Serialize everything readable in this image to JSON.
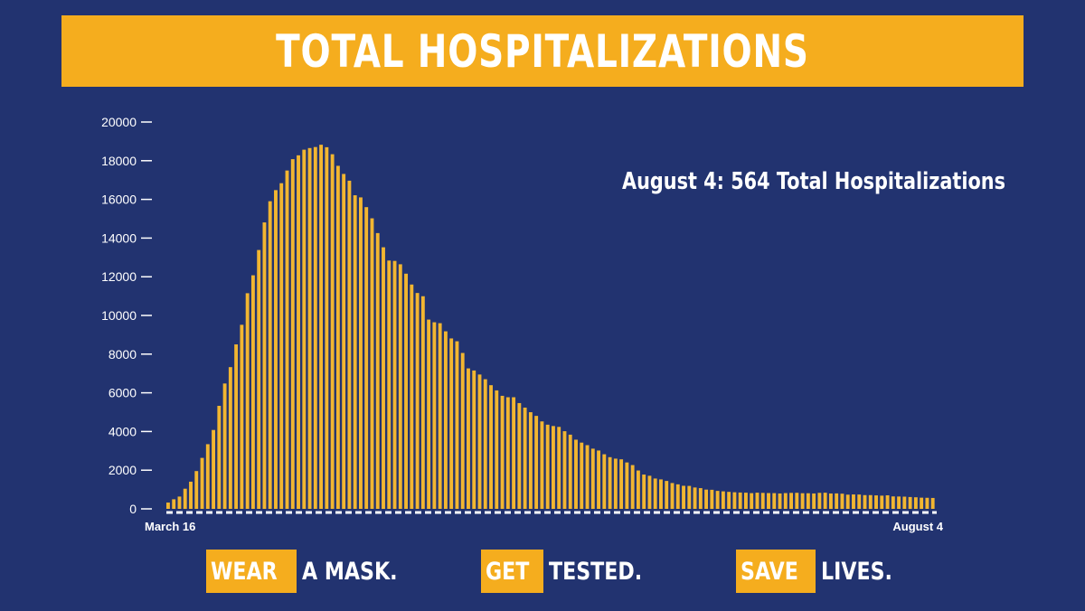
{
  "title": "TOTAL HOSPITALIZATIONS",
  "annotation": "August 4: 564 Total Hospitalizations",
  "slogans": [
    {
      "highlight": "WEAR",
      "rest": "A MASK."
    },
    {
      "highlight": "GET",
      "rest": "TESTED."
    },
    {
      "highlight": "SAVE",
      "rest": "LIVES."
    }
  ],
  "colors": {
    "background": "#223370",
    "accent": "#f5ad1e",
    "bar": "#f2b631",
    "text": "#ffffff"
  },
  "chart_data": {
    "type": "bar",
    "title": "TOTAL HOSPITALIZATIONS",
    "x_start_label": "March 16",
    "x_end_label": "August 4",
    "ylim": [
      0,
      20000
    ],
    "yticks": [
      0,
      2000,
      4000,
      6000,
      8000,
      10000,
      12000,
      14000,
      16000,
      18000,
      20000
    ],
    "grid": false,
    "values": [
      326,
      496,
      636,
      1042,
      1406,
      1954,
      2635,
      3344,
      4079,
      5327,
      6481,
      7328,
      8503,
      9517,
      11149,
      12076,
      13383,
      14810,
      15905,
      16479,
      16837,
      17493,
      18079,
      18279,
      18569,
      18654,
      18707,
      18825,
      18697,
      18335,
      17735,
      17316,
      16967,
      16213,
      16103,
      15599,
      15021,
      14258,
      13524,
      12839,
      12819,
      12646,
      12159,
      11598,
      11161,
      10993,
      9786,
      9647,
      9600,
      9179,
      8811,
      8665,
      8060,
      7262,
      7154,
      6946,
      6703,
      6394,
      6125,
      5845,
      5771,
      5771,
      5469,
      5235,
      4997,
      4807,
      4521,
      4353,
      4282,
      4239,
      4015,
      3837,
      3577,
      3425,
      3294,
      3112,
      3017,
      2823,
      2673,
      2597,
      2561,
      2400,
      2264,
      1984,
      1774,
      1711,
      1569,
      1523,
      1444,
      1336,
      1268,
      1193,
      1187,
      1105,
      1072,
      996,
      986,
      929,
      906,
      879,
      859,
      845,
      836,
      813,
      837,
      826,
      817,
      813,
      796,
      816,
      826,
      831,
      809,
      808,
      796,
      828,
      835,
      795,
      799,
      785,
      734,
      746,
      741,
      711,
      711,
      697,
      683,
      701,
      644,
      639,
      631,
      612,
      599,
      578,
      572,
      564
    ]
  }
}
